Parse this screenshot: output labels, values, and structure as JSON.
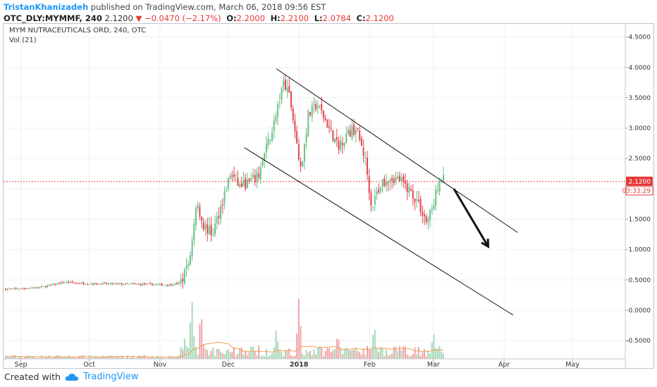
{
  "header": {
    "author": "TristanKhanizadeh",
    "published_text": " published on TradingView.com, March 06, 2018 09:56 EST"
  },
  "quote": {
    "symbol": "OTC_DLY:MYMMF, 240",
    "last": "2.1200",
    "change": "−0.0470 (−2.17%)",
    "o_label": "O:",
    "o_value": "2.2000",
    "h_label": "H:",
    "h_value": "2.2100",
    "l_label": "L:",
    "l_value": "2.0784",
    "c_label": "C:",
    "c_value": "2.1200"
  },
  "legend": {
    "series_title": "MYM NUTRACEUTICALS ORD, 240, OTC",
    "volume_title": "Vol (21)"
  },
  "price_label": "2.1200",
  "countdown_label": "03:33:29",
  "footer": {
    "created_with": "Created with",
    "brand": "TradingView"
  },
  "colors": {
    "up": "#6bbf87",
    "down": "#e2454f",
    "up_volume": "#a8d8b8",
    "down_volume": "#f3a3a9",
    "volume_ma": "#f0a050",
    "last_price": "#e53935",
    "brand": "#2196f3"
  },
  "chart_data": {
    "type": "candlestick",
    "ylim": [
      -0.8,
      4.6
    ],
    "y_ticks": [
      "4.5000",
      "4.0000",
      "3.5000",
      "3.0000",
      "2.5000",
      "2.0000",
      "1.5000",
      "1.0000",
      "0.5000",
      "0.0000",
      "-0.5000"
    ],
    "x_ticks": [
      "Sep",
      "Oct",
      "Nov",
      "Dec",
      "2018",
      "Feb",
      "Mar",
      "Apr",
      "May"
    ],
    "last_price": 2.12,
    "price_path": [
      [
        "2017-08-28",
        0.35
      ],
      [
        "2017-09-10",
        0.38
      ],
      [
        "2017-09-20",
        0.46
      ],
      [
        "2017-10-01",
        0.44
      ],
      [
        "2017-10-20",
        0.43
      ],
      [
        "2017-11-05",
        0.42
      ],
      [
        "2017-11-10",
        0.45
      ],
      [
        "2017-11-14",
        0.8
      ],
      [
        "2017-11-17",
        1.8
      ],
      [
        "2017-11-20",
        1.4
      ],
      [
        "2017-11-24",
        1.25
      ],
      [
        "2017-11-28",
        1.75
      ],
      [
        "2017-12-02",
        2.25
      ],
      [
        "2017-12-06",
        2.05
      ],
      [
        "2017-12-10",
        2.1
      ],
      [
        "2017-12-14",
        2.2
      ],
      [
        "2017-12-18",
        2.7
      ],
      [
        "2017-12-22",
        3.2
      ],
      [
        "2017-12-25",
        3.75
      ],
      [
        "2017-12-28",
        3.5
      ],
      [
        "2018-01-02",
        2.3
      ],
      [
        "2018-01-05",
        3.2
      ],
      [
        "2018-01-09",
        3.4
      ],
      [
        "2018-01-13",
        3.1
      ],
      [
        "2018-01-18",
        2.7
      ],
      [
        "2018-01-22",
        2.9
      ],
      [
        "2018-01-26",
        3.0
      ],
      [
        "2018-01-30",
        2.5
      ],
      [
        "2018-02-02",
        1.7
      ],
      [
        "2018-02-06",
        2.1
      ],
      [
        "2018-02-10",
        2.2
      ],
      [
        "2018-02-14",
        2.15
      ],
      [
        "2018-02-18",
        2.0
      ],
      [
        "2018-02-22",
        1.8
      ],
      [
        "2018-02-26",
        1.45
      ],
      [
        "2018-03-01",
        1.7
      ],
      [
        "2018-03-03",
        2.1
      ],
      [
        "2018-03-06",
        2.2
      ]
    ],
    "volume_peaks": [
      [
        "2017-11-12",
        0.35
      ],
      [
        "2017-11-15",
        1.0
      ],
      [
        "2017-11-19",
        0.8
      ],
      [
        "2017-12-22",
        0.45
      ],
      [
        "2018-01-01",
        1.0
      ],
      [
        "2018-01-18",
        0.4
      ],
      [
        "2018-02-03",
        0.55
      ],
      [
        "2018-03-01",
        0.45
      ]
    ],
    "trendlines": [
      {
        "from": [
          "2017-12-22",
          3.98
        ],
        "to": [
          "2018-04-07",
          1.28
        ]
      },
      {
        "from": [
          "2017-12-08",
          2.68
        ],
        "to": [
          "2018-04-05",
          -0.08
        ]
      }
    ],
    "arrow": {
      "from": [
        "2018-03-10",
        2.0
      ],
      "to": [
        "2018-03-25",
        1.05
      ]
    }
  }
}
